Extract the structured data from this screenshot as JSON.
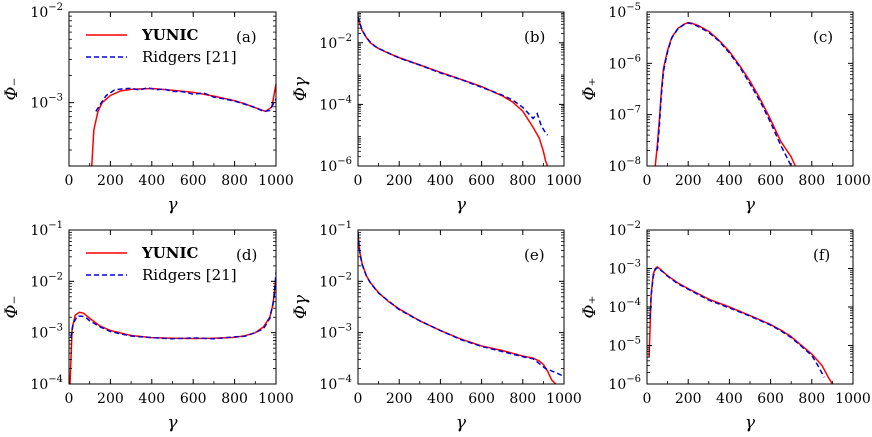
{
  "colors": {
    "yunic": "#ff0000",
    "ridgers": "#0000dd",
    "axis": "#000000"
  },
  "chart_data": [
    {
      "panel": "a",
      "type": "line",
      "tag": "(a)",
      "xlabel": "γ",
      "ylabel": "Φ₋",
      "yscale": "log",
      "xlim": [
        0,
        1000
      ],
      "ylim": [
        0.0002,
        0.01
      ],
      "xticks": [
        "0",
        "200",
        "400",
        "600",
        "800",
        "1000"
      ],
      "yticks": [
        {
          "v": 0.01,
          "m": "10",
          "e": "−2"
        },
        {
          "v": 0.001,
          "m": "10",
          "e": "−3"
        }
      ],
      "legend": {
        "placement": "top-left",
        "entries": [
          "YUNIC",
          "Ridgers [21]"
        ]
      },
      "series": [
        {
          "name": "YUNIC",
          "style": "solid",
          "x": [
            110,
            120,
            140,
            160,
            200,
            250,
            300,
            350,
            400,
            450,
            500,
            600,
            700,
            800,
            850,
            900,
            950,
            980,
            1000
          ],
          "y": [
            0.0002,
            0.0005,
            0.0008,
            0.001,
            0.0012,
            0.00135,
            0.0014,
            0.00142,
            0.00143,
            0.0014,
            0.00137,
            0.0013,
            0.00118,
            0.00105,
            0.00097,
            0.00088,
            0.0008,
            0.0009,
            0.0016
          ]
        },
        {
          "name": "Ridgers [21]",
          "style": "dashed",
          "x": [
            130,
            150,
            180,
            220,
            260,
            300,
            340,
            380,
            420,
            460,
            500,
            550,
            600,
            650,
            700,
            750,
            800,
            850,
            900,
            940,
            970,
            1000
          ],
          "y": [
            0.0008,
            0.00095,
            0.0012,
            0.00138,
            0.00142,
            0.00144,
            0.00138,
            0.00146,
            0.00139,
            0.00141,
            0.00133,
            0.00132,
            0.00124,
            0.00128,
            0.00115,
            0.0011,
            0.00104,
            0.00096,
            0.00088,
            0.0008,
            0.00082,
            0.0011
          ]
        }
      ]
    },
    {
      "panel": "b",
      "type": "line",
      "tag": "(b)",
      "xlabel": "γ",
      "ylabel": "Φγ",
      "yscale": "log",
      "xlim": [
        0,
        1000
      ],
      "ylim": [
        1e-06,
        0.1
      ],
      "xticks": [
        "0",
        "200",
        "400",
        "600",
        "800",
        "1000"
      ],
      "yticks": [
        {
          "v": 0.01,
          "m": "10",
          "e": "−2"
        },
        {
          "v": 0.0001,
          "m": "10",
          "e": "−4"
        },
        {
          "v": 1e-06,
          "m": "10",
          "e": "−6"
        }
      ],
      "series": [
        {
          "name": "YUNIC",
          "style": "solid",
          "x": [
            0,
            10,
            20,
            40,
            60,
            80,
            100,
            150,
            200,
            300,
            400,
            500,
            600,
            700,
            750,
            800,
            850,
            880,
            900,
            910,
            920
          ],
          "y": [
            0.07,
            0.04,
            0.025,
            0.015,
            0.01,
            0.008,
            0.0065,
            0.0045,
            0.0033,
            0.0019,
            0.0011,
            0.00065,
            0.00038,
            0.00019,
            0.00012,
            6e-05,
            1.8e-05,
            8e-06,
            3e-06,
            1.5e-06,
            1e-06
          ]
        },
        {
          "name": "Ridgers [21]",
          "style": "dashed",
          "x": [
            0,
            10,
            20,
            40,
            60,
            80,
            100,
            150,
            200,
            300,
            400,
            500,
            600,
            700,
            750,
            800,
            850,
            870,
            890,
            910,
            920
          ],
          "y": [
            0.07,
            0.042,
            0.026,
            0.015,
            0.0105,
            0.0078,
            0.0066,
            0.0046,
            0.0032,
            0.0019,
            0.00105,
            0.00064,
            0.00036,
            0.0002,
            0.00014,
            8e-05,
            3.5e-05,
            5e-05,
            2e-05,
            1.2e-05,
            1e-05
          ]
        }
      ]
    },
    {
      "panel": "c",
      "type": "line",
      "tag": "(c)",
      "xlabel": "γ",
      "ylabel": "Φ₊",
      "yscale": "log",
      "xlim": [
        0,
        1000
      ],
      "ylim": [
        1e-08,
        1e-05
      ],
      "xticks": [
        "0",
        "200",
        "400",
        "600",
        "800",
        "1000"
      ],
      "yticks": [
        {
          "v": 1e-05,
          "m": "10",
          "e": "−5"
        },
        {
          "v": 1e-06,
          "m": "10",
          "e": "−6"
        },
        {
          "v": 1e-07,
          "m": "10",
          "e": "−7"
        },
        {
          "v": 1e-08,
          "m": "10",
          "e": "−8"
        }
      ],
      "series": [
        {
          "name": "YUNIC",
          "style": "solid",
          "x": [
            40,
            50,
            60,
            70,
            80,
            100,
            120,
            150,
            180,
            200,
            220,
            250,
            300,
            350,
            400,
            450,
            500,
            550,
            600,
            650,
            700,
            720
          ],
          "y": [
            1e-08,
            2.5e-08,
            8e-08,
            3e-07,
            8e-07,
            1.8e-06,
            3.2e-06,
            4.8e-06,
            5.8e-06,
            6.2e-06,
            6e-06,
            5.4e-06,
            4.2e-06,
            2.8e-06,
            1.7e-06,
            9e-07,
            4.5e-07,
            2e-07,
            8e-08,
            3e-08,
            1.5e-08,
            1e-08
          ]
        },
        {
          "name": "Ridgers [21]",
          "style": "dashed",
          "x": [
            50,
            60,
            70,
            80,
            100,
            120,
            150,
            180,
            200,
            220,
            250,
            300,
            350,
            400,
            450,
            500,
            550,
            600,
            650,
            700
          ],
          "y": [
            2e-08,
            6e-08,
            2.5e-07,
            7e-07,
            1.7e-06,
            3.1e-06,
            4.7e-06,
            5.7e-06,
            6.1e-06,
            5.9e-06,
            5.2e-06,
            4e-06,
            2.7e-06,
            1.6e-06,
            8.5e-07,
            4e-07,
            1.8e-07,
            7e-08,
            2.5e-08,
            1e-08
          ]
        }
      ]
    },
    {
      "panel": "d",
      "type": "line",
      "tag": "(d)",
      "xlabel": "γ",
      "ylabel": "Φ₋",
      "yscale": "log",
      "xlim": [
        0,
        1000
      ],
      "ylim": [
        0.0001,
        0.1
      ],
      "xticks": [
        "0",
        "200",
        "400",
        "600",
        "800",
        "1000"
      ],
      "yticks": [
        {
          "v": 0.1,
          "m": "10",
          "e": "−1"
        },
        {
          "v": 0.01,
          "m": "10",
          "e": "−2"
        },
        {
          "v": 0.001,
          "m": "10",
          "e": "−3"
        },
        {
          "v": 0.0001,
          "m": "10",
          "e": "−4"
        }
      ],
      "legend": {
        "placement": "top-left",
        "entries": [
          "YUNIC",
          "Ridgers [21]"
        ]
      },
      "series": [
        {
          "name": "YUNIC",
          "style": "solid",
          "x": [
            5,
            15,
            30,
            50,
            70,
            100,
            150,
            200,
            300,
            400,
            500,
            600,
            700,
            800,
            850,
            900,
            940,
            970,
            985,
            1000
          ],
          "y": [
            0.0001,
            0.0012,
            0.0022,
            0.0025,
            0.0024,
            0.0019,
            0.00135,
            0.0011,
            0.00088,
            0.0008,
            0.00078,
            0.00077,
            0.00078,
            0.00081,
            0.00087,
            0.001,
            0.0013,
            0.002,
            0.0035,
            0.012
          ]
        },
        {
          "name": "Ridgers [21]",
          "style": "dashed",
          "x": [
            10,
            20,
            40,
            60,
            80,
            100,
            150,
            200,
            300,
            400,
            500,
            600,
            700,
            800,
            850,
            900,
            940,
            970,
            990,
            1000
          ],
          "y": [
            0.0008,
            0.0015,
            0.0021,
            0.0021,
            0.002,
            0.0017,
            0.0013,
            0.00105,
            0.00086,
            0.0008,
            0.00076,
            0.00079,
            0.00076,
            0.00083,
            0.00085,
            0.001,
            0.0012,
            0.0019,
            0.0045,
            0.015
          ]
        }
      ]
    },
    {
      "panel": "e",
      "type": "line",
      "tag": "(e)",
      "xlabel": "γ",
      "ylabel": "Φγ",
      "yscale": "log",
      "xlim": [
        0,
        1000
      ],
      "ylim": [
        0.0001,
        0.1
      ],
      "xticks": [
        "0",
        "200",
        "400",
        "600",
        "800",
        "1000"
      ],
      "yticks": [
        {
          "v": 0.1,
          "m": "10",
          "e": "−1"
        },
        {
          "v": 0.01,
          "m": "10",
          "e": "−2"
        },
        {
          "v": 0.001,
          "m": "10",
          "e": "−3"
        },
        {
          "v": 0.0001,
          "m": "10",
          "e": "−4"
        }
      ],
      "series": [
        {
          "name": "YUNIC",
          "style": "solid",
          "x": [
            0,
            5,
            10,
            20,
            40,
            60,
            80,
            100,
            150,
            200,
            300,
            400,
            500,
            600,
            700,
            800,
            850,
            880,
            900,
            920,
            940,
            960
          ],
          "y": [
            0.09,
            0.05,
            0.035,
            0.022,
            0.013,
            0.0095,
            0.0075,
            0.006,
            0.004,
            0.0029,
            0.0017,
            0.0011,
            0.00075,
            0.00055,
            0.00045,
            0.00035,
            0.00032,
            0.00028,
            0.00024,
            0.00018,
            0.00012,
            0.0001
          ]
        },
        {
          "name": "Ridgers [21]",
          "style": "dashed",
          "x": [
            0,
            5,
            10,
            20,
            40,
            60,
            80,
            100,
            150,
            200,
            300,
            400,
            500,
            600,
            700,
            800,
            850,
            880,
            910,
            940,
            970,
            1000
          ],
          "y": [
            0.09,
            0.05,
            0.034,
            0.021,
            0.013,
            0.0093,
            0.0074,
            0.0059,
            0.0041,
            0.0028,
            0.0017,
            0.0011,
            0.00073,
            0.00054,
            0.00043,
            0.00034,
            0.00031,
            0.00025,
            0.0002,
            0.00018,
            0.00016,
            0.00014
          ]
        }
      ]
    },
    {
      "panel": "f",
      "type": "line",
      "tag": "(f)",
      "xlabel": "γ",
      "ylabel": "Φ₊",
      "yscale": "log",
      "xlim": [
        0,
        1000
      ],
      "ylim": [
        1e-06,
        0.01
      ],
      "xticks": [
        "0",
        "200",
        "400",
        "600",
        "800",
        "1000"
      ],
      "yticks": [
        {
          "v": 0.01,
          "m": "10",
          "e": "−2"
        },
        {
          "v": 0.001,
          "m": "10",
          "e": "−3"
        },
        {
          "v": 0.0001,
          "m": "10",
          "e": "−4"
        },
        {
          "v": 1e-05,
          "m": "10",
          "e": "−5"
        },
        {
          "v": 1e-06,
          "m": "10",
          "e": "−6"
        }
      ],
      "series": [
        {
          "name": "YUNIC",
          "style": "solid",
          "x": [
            10,
            15,
            20,
            30,
            40,
            50,
            60,
            80,
            100,
            150,
            200,
            300,
            400,
            500,
            600,
            650,
            700,
            750,
            800,
            850,
            880,
            900
          ],
          "y": [
            5e-06,
            3e-05,
            0.0002,
            0.0007,
            0.001,
            0.0011,
            0.001,
            0.0008,
            0.00065,
            0.00042,
            0.0003,
            0.00016,
            0.0001,
            6e-05,
            3.5e-05,
            2.5e-05,
            1.7e-05,
            1e-05,
            6e-06,
            3e-06,
            1.5e-06,
            1e-06
          ]
        },
        {
          "name": "Ridgers [21]",
          "style": "dashed",
          "x": [
            15,
            20,
            30,
            40,
            50,
            60,
            80,
            100,
            150,
            200,
            300,
            400,
            500,
            600,
            650,
            700,
            750,
            800,
            830,
            860
          ],
          "y": [
            5e-05,
            0.0002,
            0.0006,
            0.00095,
            0.00105,
            0.00095,
            0.0008,
            0.00063,
            0.0004,
            0.00029,
            0.00015,
            9.5e-05,
            5.8e-05,
            3.4e-05,
            2.4e-05,
            1.6e-05,
            9.5e-06,
            5.5e-06,
            3e-06,
            1.5e-06
          ]
        }
      ]
    }
  ]
}
